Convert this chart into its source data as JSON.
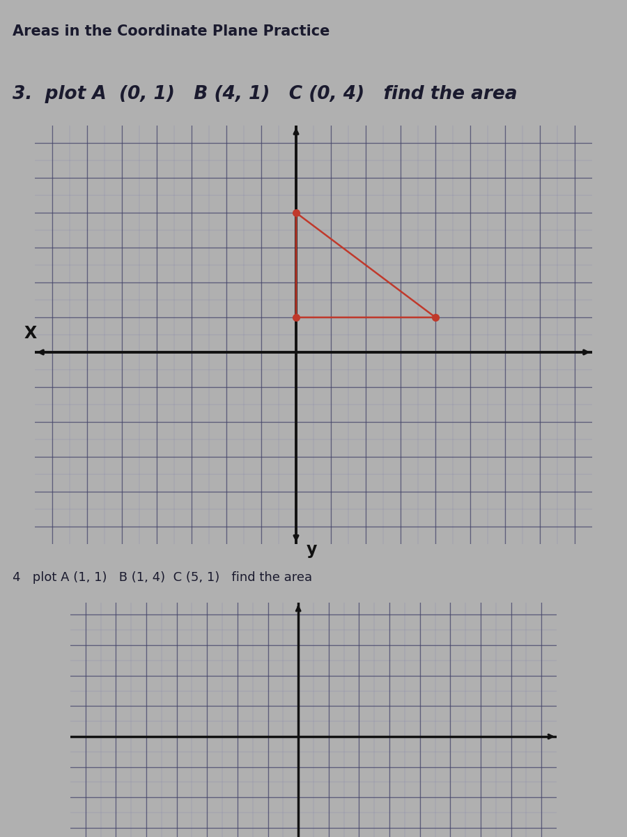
{
  "title": "Areas in the Coordinate Plane Practice",
  "problem3_text": "3.  plot A  (0, 1)   B (4, 1)   C (0, 4)   find the area",
  "problem4_text": "4   plot A (1, 1)   B (1, 4)  C (5, 1)   find the area",
  "triangle3_points": [
    [
      0,
      1
    ],
    [
      4,
      1
    ],
    [
      0,
      4
    ]
  ],
  "triangle_color": "#c0392b",
  "outer_bg_color": "#b0b0b0",
  "grid_bg_color": "#ddd8cc",
  "grid_major_color": "#444466",
  "grid_minor_color": "#7777aa",
  "axis_color": "#111111",
  "text_color": "#1a1a2e",
  "x_label": "X",
  "y_label": "y",
  "title_fontsize": 15,
  "problem3_fontsize": 19,
  "problem4_fontsize": 13,
  "grid_xlim": [
    -7,
    8
  ],
  "grid_ylim": [
    -5,
    6
  ],
  "grid2_ylim": [
    -3,
    4
  ]
}
